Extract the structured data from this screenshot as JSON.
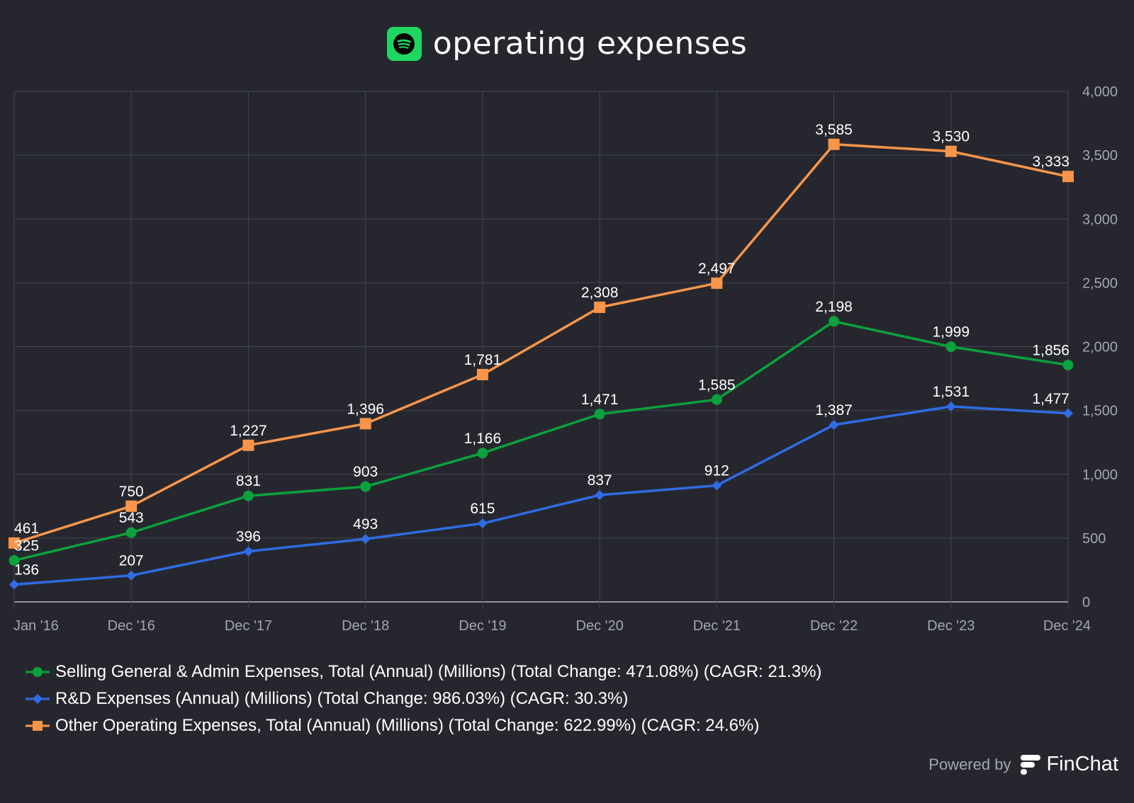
{
  "header": {
    "title": "operating expenses",
    "logo_icon": "spotify-logo-icon"
  },
  "chart_data": {
    "type": "line",
    "categories": [
      "Jan '16",
      "Dec '16",
      "Dec '17",
      "Dec '18",
      "Dec '19",
      "Dec '20",
      "Dec '21",
      "Dec '22",
      "Dec '23",
      "Dec '24"
    ],
    "ylim": [
      0,
      4000
    ],
    "yticks": [
      0,
      500,
      1000,
      1500,
      2000,
      2500,
      3000,
      3500,
      4000
    ],
    "ytick_labels": [
      "0",
      "500",
      "1,000",
      "1,500",
      "2,000",
      "2,500",
      "3,000",
      "3,500",
      "4,000"
    ],
    "y_axis_side": "right",
    "grid": true,
    "legend_position": "bottom-left",
    "series": [
      {
        "name": "Selling General & Admin Expenses, Total (Annual) (Millions) (Total Change: 471.08%) (CAGR: 21.3%)",
        "color": "#0ba13c",
        "marker": "circle",
        "values": [
          325,
          543,
          831,
          903,
          1166,
          1471,
          1585,
          2198,
          1999,
          1856
        ],
        "labels": [
          "325",
          "543",
          "831",
          "903",
          "1,166",
          "1,471",
          "1,585",
          "2,198",
          "1,999",
          "1,856"
        ]
      },
      {
        "name": "R&D Expenses (Annual) (Millions) (Total Change: 986.03%) (CAGR: 30.3%)",
        "color": "#2f6ce5",
        "marker": "diamond",
        "values": [
          136,
          207,
          396,
          493,
          615,
          837,
          912,
          1387,
          1531,
          1477
        ],
        "labels": [
          "136",
          "207",
          "396",
          "493",
          "615",
          "837",
          "912",
          "1,387",
          "1,531",
          "1,477"
        ]
      },
      {
        "name": "Other Operating Expenses, Total (Annual) (Millions) (Total Change: 622.99%) (CAGR: 24.6%)",
        "color": "#f8954a",
        "marker": "square",
        "values": [
          461,
          750,
          1227,
          1396,
          1781,
          2308,
          2497,
          3585,
          3530,
          3333
        ],
        "labels": [
          "461",
          "750",
          "1,227",
          "1,396",
          "1,781",
          "2,308",
          "2,497",
          "3,585",
          "3,530",
          "3,333"
        ]
      }
    ]
  },
  "footer": {
    "powered_by": "Powered by",
    "brand": "FinChat"
  }
}
